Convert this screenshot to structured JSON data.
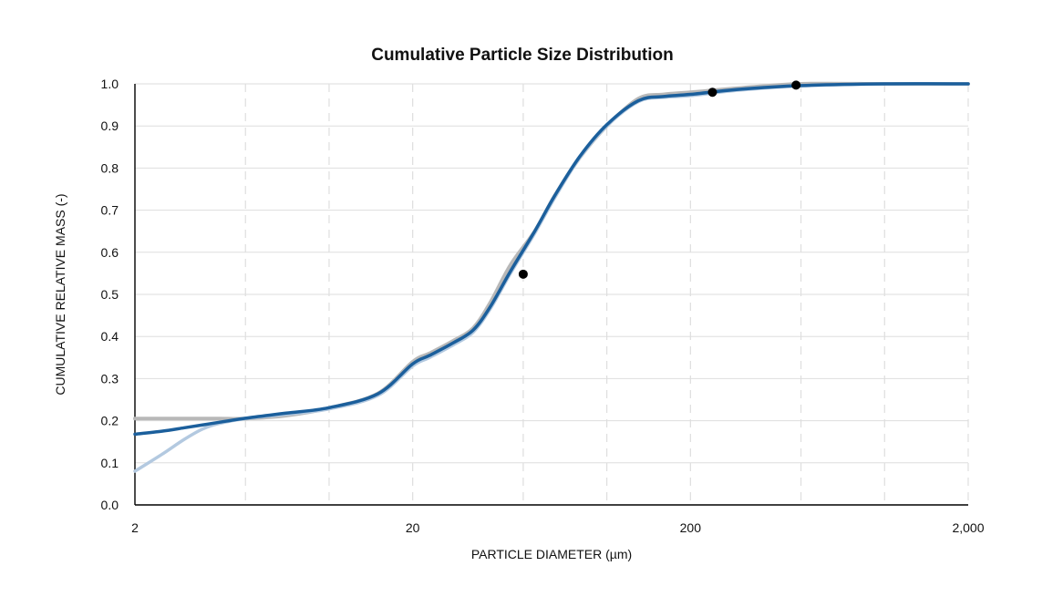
{
  "chart_data": {
    "type": "line",
    "title": "Cumulative Particle Size Distribution",
    "xlabel": "PARTICLE DIAMETER (µm)",
    "ylabel": "CUMULATIVE RELATIVE MASS (-)",
    "xscale": "log",
    "xlim": [
      2,
      2000
    ],
    "ylim": [
      0,
      1.0
    ],
    "x_ticks": [
      2,
      20,
      200,
      2000
    ],
    "x_tick_labels": [
      "2",
      "20",
      "200",
      "2,000"
    ],
    "y_ticks": [
      0,
      0.1,
      0.2,
      0.3,
      0.4,
      0.5,
      0.6,
      0.7,
      0.8,
      0.9,
      1.0
    ],
    "y_tick_labels": [
      "0.0",
      "0.1",
      "0.2",
      "0.3",
      "0.4",
      "0.5",
      "0.6",
      "0.7",
      "0.8",
      "0.9",
      "1.0"
    ],
    "grid": true,
    "legend": "none",
    "series": [
      {
        "color": "#b8b8b8",
        "x": [
          2,
          3,
          4,
          5,
          7,
          10,
          15,
          20,
          23,
          28,
          33,
          38,
          45,
          55,
          65,
          80,
          100,
          130,
          160,
          200,
          300,
          500,
          1000,
          2000
        ],
        "y": [
          0.205,
          0.205,
          0.205,
          0.205,
          0.212,
          0.23,
          0.265,
          0.34,
          0.36,
          0.39,
          0.42,
          0.48,
          0.57,
          0.65,
          0.735,
          0.825,
          0.9,
          0.965,
          0.975,
          0.98,
          0.99,
          1.0,
          1.0,
          1.0
        ]
      },
      {
        "color": "#b3c9e0",
        "x": [
          2,
          2.5,
          3,
          3.5,
          4,
          5,
          7,
          10,
          15,
          20,
          23,
          28,
          33,
          38,
          45,
          55,
          65,
          80,
          100,
          130,
          160,
          200,
          300,
          500,
          1000,
          2000
        ],
        "y": [
          0.08,
          0.12,
          0.155,
          0.18,
          0.193,
          0.205,
          0.215,
          0.228,
          0.26,
          0.33,
          0.35,
          0.38,
          0.41,
          0.465,
          0.55,
          0.645,
          0.73,
          0.825,
          0.9,
          0.958,
          0.968,
          0.972,
          0.985,
          0.995,
          1.0,
          1.0
        ]
      },
      {
        "color": "#1b5f9c",
        "x": [
          2,
          2.5,
          3,
          3.5,
          4,
          5,
          7,
          10,
          15,
          20,
          23,
          28,
          33,
          38,
          45,
          55,
          65,
          80,
          100,
          130,
          160,
          200,
          300,
          500,
          1000,
          2000
        ],
        "y": [
          0.168,
          0.175,
          0.183,
          0.19,
          0.196,
          0.206,
          0.218,
          0.231,
          0.264,
          0.335,
          0.355,
          0.385,
          0.415,
          0.47,
          0.555,
          0.65,
          0.735,
          0.828,
          0.903,
          0.96,
          0.97,
          0.975,
          0.987,
          0.996,
          1.0,
          1.0
        ]
      }
    ],
    "markers": {
      "color": "#000000",
      "x": [
        50,
        240,
        480
      ],
      "y": [
        0.548,
        0.98,
        0.997
      ]
    }
  }
}
